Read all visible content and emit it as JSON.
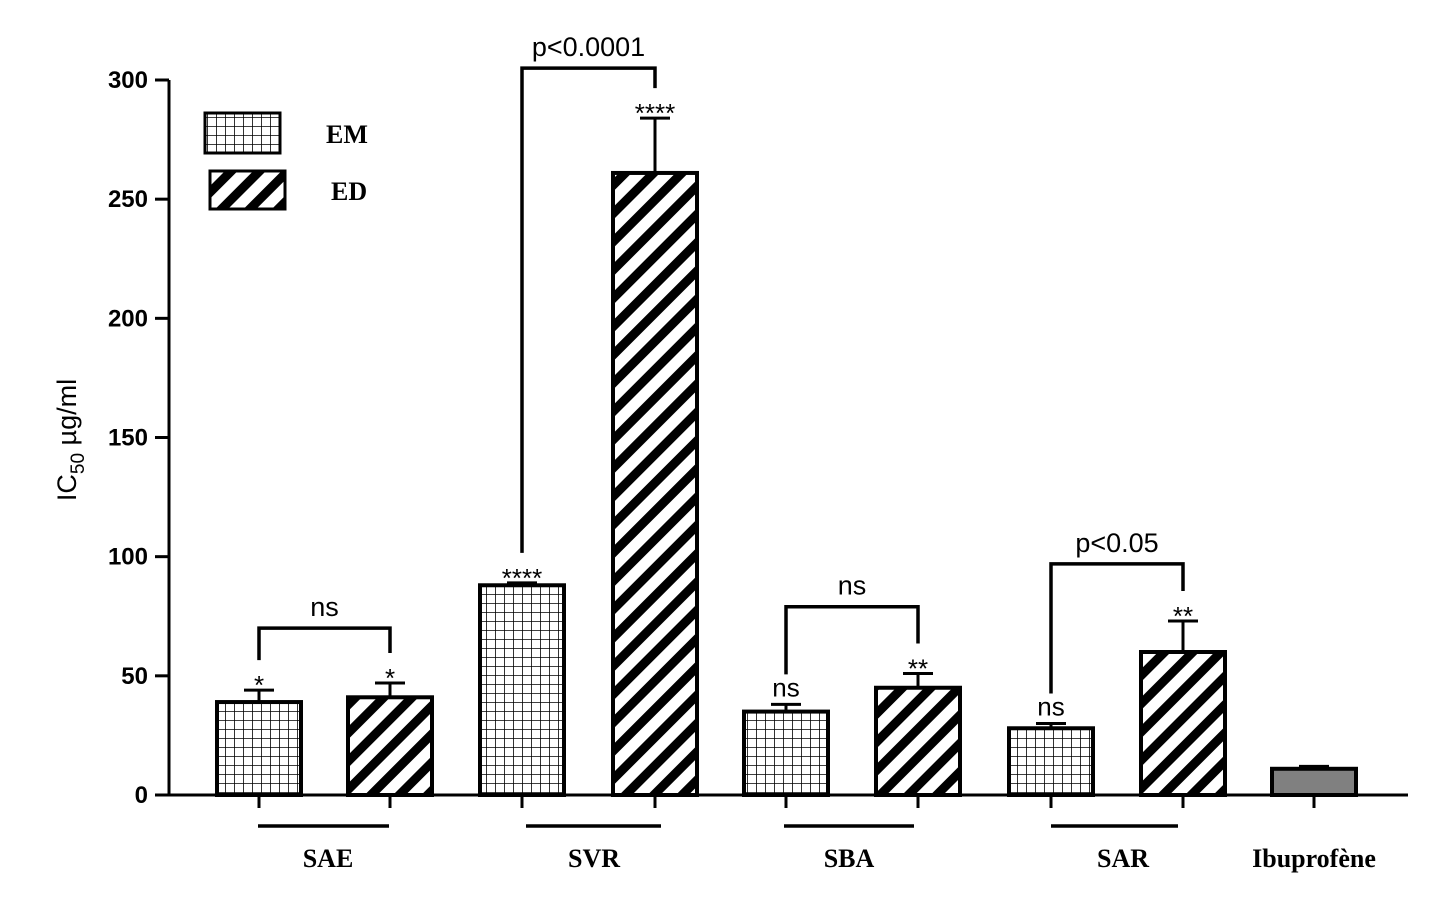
{
  "chart_data": {
    "type": "bar",
    "ylabel_main": "IC",
    "ylabel_sub": "50",
    "ylabel_unit": " µg/ml",
    "ylim": [
      0,
      300
    ],
    "yticks": [
      "0",
      "50",
      "100",
      "150",
      "200",
      "250",
      "300"
    ],
    "legend": [
      {
        "name": "EM",
        "pattern": "grid"
      },
      {
        "name": "ED",
        "pattern": "diagonal"
      }
    ],
    "groups": [
      {
        "label": "SAE",
        "underline": true
      },
      {
        "label": "SVR",
        "underline": true
      },
      {
        "label": "SBA",
        "underline": true
      },
      {
        "label": "SAR",
        "underline": true
      },
      {
        "label": "Ibuprofène",
        "underline": false
      }
    ],
    "bars": [
      {
        "group": 0,
        "series": "EM",
        "value": 39,
        "error": 5,
        "sig": "*"
      },
      {
        "group": 0,
        "series": "ED",
        "value": 41,
        "error": 6,
        "sig": "*"
      },
      {
        "group": 1,
        "series": "EM",
        "value": 88,
        "error": 1,
        "sig": "****"
      },
      {
        "group": 1,
        "series": "ED",
        "value": 261,
        "error": 23,
        "sig": "****"
      },
      {
        "group": 2,
        "series": "EM",
        "value": 35,
        "error": 3,
        "sig": "ns"
      },
      {
        "group": 2,
        "series": "ED",
        "value": 45,
        "error": 6,
        "sig": "**"
      },
      {
        "group": 3,
        "series": "EM",
        "value": 28,
        "error": 2,
        "sig": "ns"
      },
      {
        "group": 3,
        "series": "ED",
        "value": 60,
        "error": 13,
        "sig": "**"
      },
      {
        "group": 4,
        "series": "Ibuprofène",
        "value": 11,
        "error": 1,
        "sig": ""
      }
    ],
    "comparisons": [
      {
        "label": "ns",
        "from_bar": 0,
        "to_bar": 1,
        "y": 70
      },
      {
        "label": "p<0.0001",
        "from_bar": 2,
        "to_bar": 3,
        "y": 305
      },
      {
        "label": "ns",
        "from_bar": 4,
        "to_bar": 5,
        "y": 79
      },
      {
        "label": "p<0.05",
        "from_bar": 6,
        "to_bar": 7,
        "y": 97
      }
    ],
    "colors": {
      "ibuprofen_fill": "#808080",
      "stroke": "#000000"
    }
  }
}
